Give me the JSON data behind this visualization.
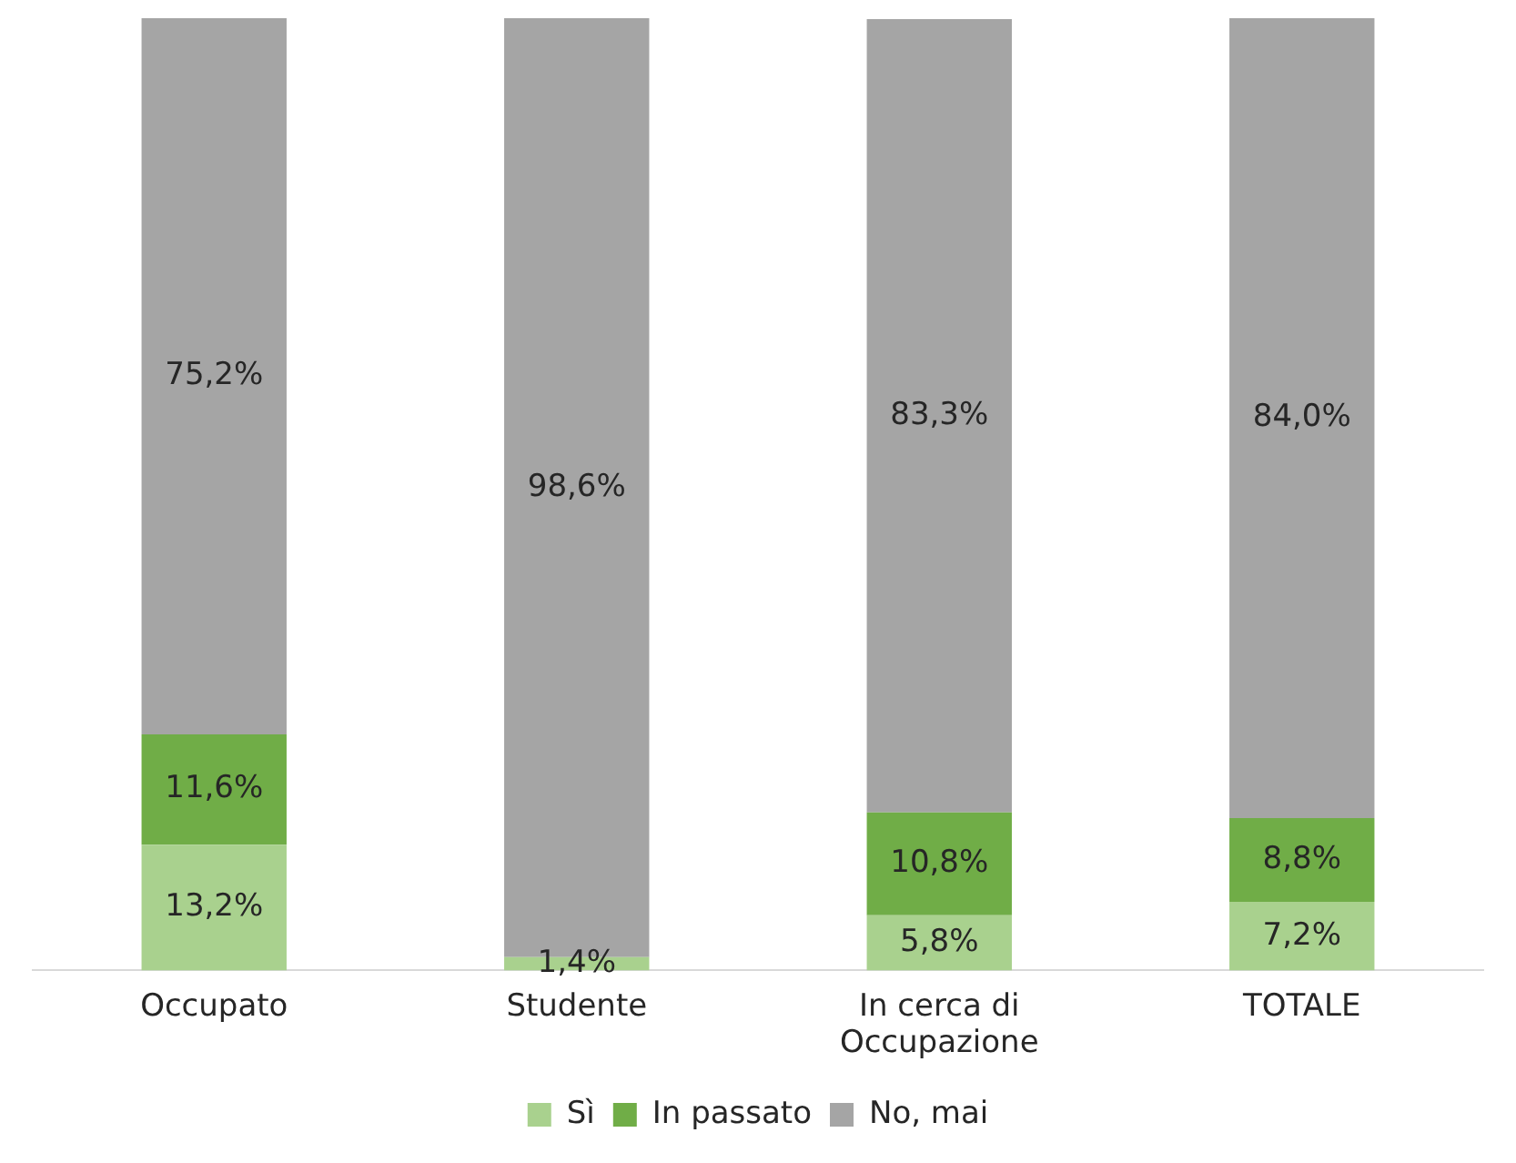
{
  "chart_data": {
    "type": "bar",
    "stacked": true,
    "categories": [
      "Occupato",
      "Studente",
      "In cerca di Occupazione",
      "TOTALE"
    ],
    "series": [
      {
        "name": "Sì",
        "color": "#a9d18e",
        "values": [
          13.2,
          1.4,
          5.8,
          7.2
        ],
        "value_labels": [
          "13,2%",
          "1,4%",
          "5,8%",
          "7,2%"
        ]
      },
      {
        "name": "In passato",
        "color": "#70ad47",
        "values": [
          11.6,
          null,
          10.8,
          8.8
        ],
        "value_labels": [
          "11,6%",
          null,
          "10,8%",
          "8,8%"
        ]
      },
      {
        "name": "No, mai",
        "color": "#a5a5a5",
        "values": [
          75.2,
          98.6,
          83.3,
          84.0
        ],
        "value_labels": [
          "75,2%",
          "98,6%",
          "83,3%",
          "84,0%"
        ]
      }
    ],
    "legend": "bottom",
    "grid": false,
    "tick_labels": "x"
  }
}
